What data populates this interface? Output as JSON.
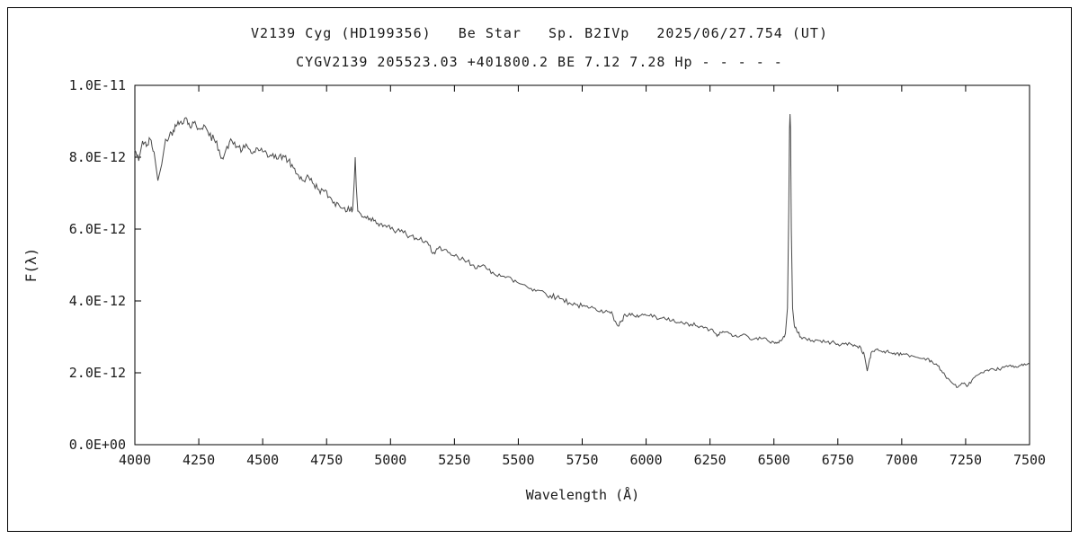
{
  "chart_data": {
    "type": "line",
    "title": "V2139 Cyg (HD199356)   Be Star   Sp. B2IVp   2025/06/27.754 (UT)",
    "subtitle": "CYGV2139 205523.03 +401800.2 BE 7.12 7.28 Hp - - - - -",
    "xlabel": "Wavelength (Å)",
    "ylabel": "F(λ)",
    "xlim": [
      4000,
      7500
    ],
    "ylim": [
      0,
      1e-11
    ],
    "grid": false,
    "legend": null,
    "line_color": "#4a4a4a",
    "axis_color": "#000000",
    "background_color": "#ffffff",
    "x_ticks": {
      "values": [
        4000,
        4250,
        4500,
        4750,
        5000,
        5250,
        5500,
        5750,
        6000,
        6250,
        6500,
        6750,
        7000,
        7250,
        7500
      ],
      "labels": [
        "4000",
        "4250",
        "4500",
        "4750",
        "5000",
        "5250",
        "5500",
        "5750",
        "6000",
        "6250",
        "6500",
        "6750",
        "7000",
        "7250",
        "7500"
      ]
    },
    "y_ticks": {
      "values": [
        0,
        2e-12,
        4e-12,
        6e-12,
        8e-12,
        1e-11
      ],
      "labels": [
        "0.0E+00",
        "2.0E-12",
        "4.0E-12",
        "6.0E-12",
        "8.0E-12",
        "1.0E-11"
      ]
    },
    "series": [
      {
        "name": "flux",
        "y_scale": 1e-12,
        "points": [
          [
            4000,
            8.2
          ],
          [
            4015,
            7.9
          ],
          [
            4030,
            8.45
          ],
          [
            4045,
            8.3
          ],
          [
            4060,
            8.5
          ],
          [
            4075,
            8.15
          ],
          [
            4090,
            7.35
          ],
          [
            4105,
            7.8
          ],
          [
            4120,
            8.5
          ],
          [
            4135,
            8.6
          ],
          [
            4150,
            8.75
          ],
          [
            4165,
            8.9
          ],
          [
            4180,
            9.0
          ],
          [
            4200,
            9.1
          ],
          [
            4215,
            8.85
          ],
          [
            4230,
            8.95
          ],
          [
            4250,
            8.8
          ],
          [
            4270,
            8.9
          ],
          [
            4290,
            8.6
          ],
          [
            4310,
            8.5
          ],
          [
            4330,
            8.2
          ],
          [
            4345,
            7.95
          ],
          [
            4360,
            8.3
          ],
          [
            4380,
            8.45
          ],
          [
            4400,
            8.3
          ],
          [
            4420,
            8.2
          ],
          [
            4440,
            8.3
          ],
          [
            4460,
            8.1
          ],
          [
            4480,
            8.25
          ],
          [
            4500,
            8.15
          ],
          [
            4520,
            8.0
          ],
          [
            4540,
            8.1
          ],
          [
            4560,
            7.95
          ],
          [
            4580,
            8.05
          ],
          [
            4600,
            7.9
          ],
          [
            4620,
            7.7
          ],
          [
            4640,
            7.5
          ],
          [
            4660,
            7.35
          ],
          [
            4680,
            7.45
          ],
          [
            4700,
            7.25
          ],
          [
            4720,
            7.1
          ],
          [
            4740,
            7.05
          ],
          [
            4760,
            6.9
          ],
          [
            4780,
            6.75
          ],
          [
            4800,
            6.65
          ],
          [
            4820,
            6.6
          ],
          [
            4840,
            6.5
          ],
          [
            4852,
            6.55
          ],
          [
            4858,
            7.3
          ],
          [
            4862,
            8.0
          ],
          [
            4866,
            7.2
          ],
          [
            4872,
            6.5
          ],
          [
            4885,
            6.4
          ],
          [
            4900,
            6.35
          ],
          [
            4920,
            6.3
          ],
          [
            4940,
            6.25
          ],
          [
            4960,
            6.15
          ],
          [
            4980,
            6.1
          ],
          [
            5000,
            6.0
          ],
          [
            5025,
            5.95
          ],
          [
            5050,
            5.9
          ],
          [
            5075,
            5.8
          ],
          [
            5100,
            5.75
          ],
          [
            5125,
            5.65
          ],
          [
            5150,
            5.55
          ],
          [
            5170,
            5.35
          ],
          [
            5185,
            5.45
          ],
          [
            5200,
            5.4
          ],
          [
            5225,
            5.35
          ],
          [
            5250,
            5.25
          ],
          [
            5275,
            5.15
          ],
          [
            5300,
            5.1
          ],
          [
            5325,
            5.0
          ],
          [
            5350,
            4.95
          ],
          [
            5375,
            4.9
          ],
          [
            5400,
            4.8
          ],
          [
            5425,
            4.75
          ],
          [
            5450,
            4.65
          ],
          [
            5475,
            4.6
          ],
          [
            5500,
            4.5
          ],
          [
            5525,
            4.45
          ],
          [
            5550,
            4.35
          ],
          [
            5575,
            4.3
          ],
          [
            5600,
            4.25
          ],
          [
            5625,
            4.15
          ],
          [
            5650,
            4.1
          ],
          [
            5675,
            4.05
          ],
          [
            5700,
            3.95
          ],
          [
            5725,
            3.9
          ],
          [
            5750,
            3.85
          ],
          [
            5775,
            3.8
          ],
          [
            5800,
            3.8
          ],
          [
            5825,
            3.75
          ],
          [
            5850,
            3.7
          ],
          [
            5870,
            3.6
          ],
          [
            5890,
            3.3
          ],
          [
            5905,
            3.45
          ],
          [
            5920,
            3.6
          ],
          [
            5940,
            3.6
          ],
          [
            5960,
            3.55
          ],
          [
            5980,
            3.6
          ],
          [
            6000,
            3.6
          ],
          [
            6025,
            3.55
          ],
          [
            6050,
            3.5
          ],
          [
            6075,
            3.5
          ],
          [
            6100,
            3.45
          ],
          [
            6125,
            3.4
          ],
          [
            6150,
            3.35
          ],
          [
            6175,
            3.35
          ],
          [
            6200,
            3.3
          ],
          [
            6225,
            3.25
          ],
          [
            6250,
            3.2
          ],
          [
            6270,
            3.1
          ],
          [
            6285,
            3.05
          ],
          [
            6300,
            3.15
          ],
          [
            6325,
            3.1
          ],
          [
            6350,
            3.05
          ],
          [
            6375,
            3.05
          ],
          [
            6400,
            3.0
          ],
          [
            6425,
            2.95
          ],
          [
            6450,
            2.95
          ],
          [
            6475,
            2.9
          ],
          [
            6500,
            2.85
          ],
          [
            6515,
            2.85
          ],
          [
            6530,
            2.9
          ],
          [
            6545,
            3.1
          ],
          [
            6553,
            3.8
          ],
          [
            6558,
            6.5
          ],
          [
            6561,
            8.8
          ],
          [
            6563,
            9.2
          ],
          [
            6565,
            8.8
          ],
          [
            6568,
            6.0
          ],
          [
            6573,
            3.8
          ],
          [
            6580,
            3.3
          ],
          [
            6590,
            3.15
          ],
          [
            6605,
            3.0
          ],
          [
            6625,
            2.95
          ],
          [
            6650,
            2.9
          ],
          [
            6675,
            2.9
          ],
          [
            6700,
            2.85
          ],
          [
            6725,
            2.85
          ],
          [
            6750,
            2.8
          ],
          [
            6775,
            2.8
          ],
          [
            6800,
            2.8
          ],
          [
            6820,
            2.75
          ],
          [
            6840,
            2.7
          ],
          [
            6855,
            2.45
          ],
          [
            6865,
            2.05
          ],
          [
            6875,
            2.4
          ],
          [
            6885,
            2.6
          ],
          [
            6900,
            2.65
          ],
          [
            6920,
            2.6
          ],
          [
            6940,
            2.6
          ],
          [
            6960,
            2.55
          ],
          [
            6980,
            2.55
          ],
          [
            7000,
            2.5
          ],
          [
            7025,
            2.5
          ],
          [
            7050,
            2.45
          ],
          [
            7075,
            2.4
          ],
          [
            7100,
            2.4
          ],
          [
            7120,
            2.3
          ],
          [
            7140,
            2.2
          ],
          [
            7160,
            2.0
          ],
          [
            7180,
            1.85
          ],
          [
            7200,
            1.7
          ],
          [
            7220,
            1.6
          ],
          [
            7240,
            1.7
          ],
          [
            7260,
            1.65
          ],
          [
            7280,
            1.85
          ],
          [
            7300,
            1.95
          ],
          [
            7320,
            2.0
          ],
          [
            7340,
            2.05
          ],
          [
            7360,
            2.1
          ],
          [
            7380,
            2.1
          ],
          [
            7400,
            2.15
          ],
          [
            7420,
            2.2
          ],
          [
            7440,
            2.15
          ],
          [
            7460,
            2.2
          ],
          [
            7480,
            2.25
          ],
          [
            7500,
            2.25
          ]
        ]
      }
    ]
  }
}
